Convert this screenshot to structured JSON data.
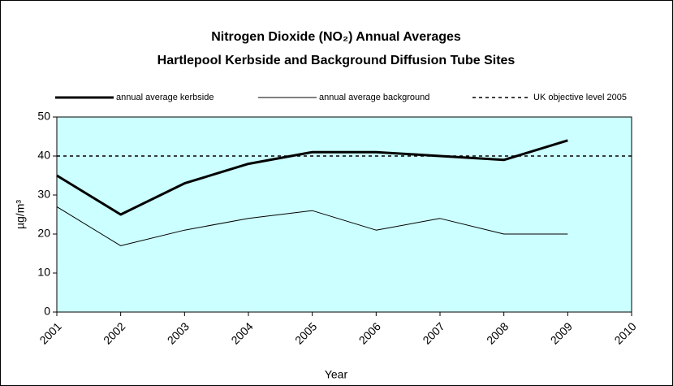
{
  "chart_data": {
    "type": "line",
    "title": "Nitrogen Dioxide (NO₂) Annual Averages",
    "subtitle": "Hartlepool Kerbside and Background Diffusion Tube Sites",
    "x_label": "Year",
    "y_label": "µg/m³",
    "x": [
      2001,
      2002,
      2003,
      2004,
      2005,
      2006,
      2007,
      2008,
      2009,
      2010
    ],
    "xlim": [
      2001,
      2010
    ],
    "xticks": [
      2001,
      2002,
      2003,
      2004,
      2005,
      2006,
      2007,
      2008,
      2009,
      2010
    ],
    "ylim": [
      0,
      50
    ],
    "yticks": [
      0,
      10,
      20,
      30,
      40,
      50
    ],
    "plot_background": "#ccffff",
    "series": [
      {
        "name": "annual average kerbside",
        "color": "#000000",
        "width": 3,
        "dashed": false,
        "values": [
          35,
          25,
          33,
          38,
          41,
          41,
          40,
          39,
          44,
          null
        ]
      },
      {
        "name": "annual average background",
        "color": "#000000",
        "width": 1,
        "dashed": false,
        "values": [
          27,
          17,
          21,
          24,
          26,
          21,
          24,
          20,
          20,
          null
        ]
      },
      {
        "name": "UK objective level 2005",
        "color": "#000000",
        "width": 1.5,
        "dashed": true,
        "values": [
          40,
          40,
          40,
          40,
          40,
          40,
          40,
          40,
          40,
          40
        ]
      }
    ]
  }
}
